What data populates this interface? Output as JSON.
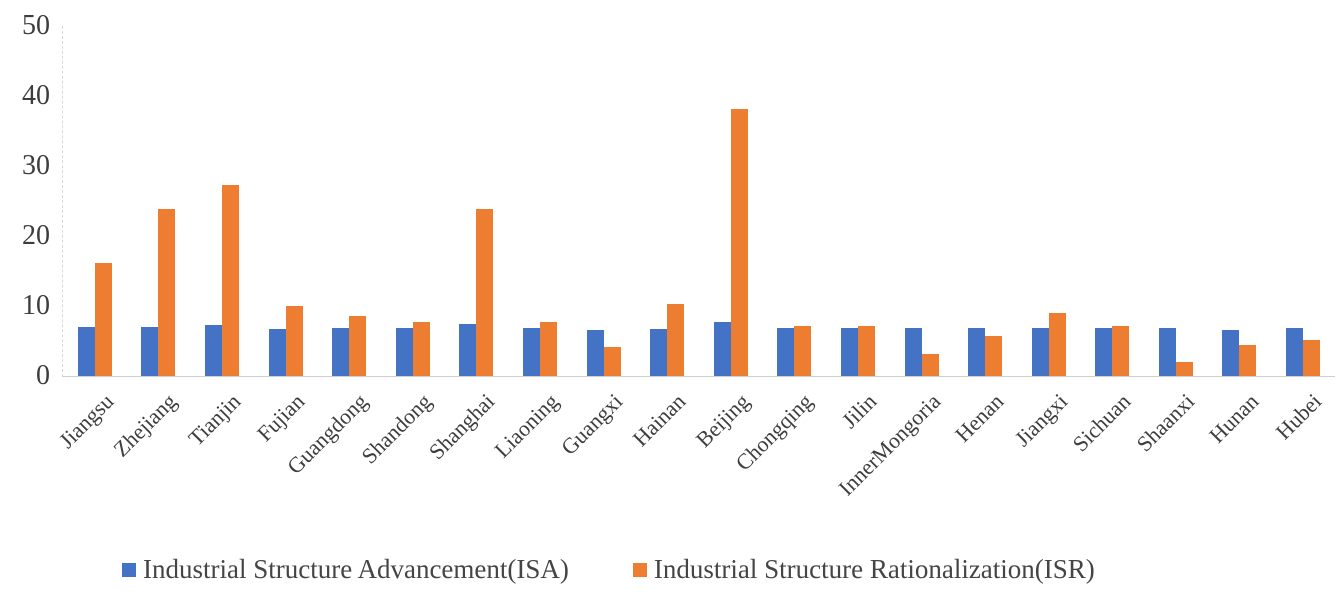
{
  "chart_data": {
    "type": "bar",
    "title": "",
    "xlabel": "",
    "ylabel": "",
    "ylim": [
      0,
      50
    ],
    "yticks": [
      0,
      10,
      20,
      30,
      40,
      50
    ],
    "grid": false,
    "legend_position": "bottom",
    "categories": [
      "Jiangsu",
      "Zhejiang",
      "Tianjin",
      "Fujian",
      "Guangdong",
      "Shandong",
      "Shanghai",
      "Liaoning",
      "Guangxi",
      "Hainan",
      "Beijing",
      "Chongqing",
      "Jilin",
      "InnerMongoria",
      "Henan",
      "Jiangxi",
      "Sichuan",
      "Shaanxi",
      "Hunan",
      "Hubei"
    ],
    "series": [
      {
        "name": "Industrial Structure Advancement(ISA)",
        "color": "#4472c4",
        "values": [
          7.0,
          7.0,
          7.3,
          6.7,
          6.9,
          6.9,
          7.4,
          6.8,
          6.6,
          6.7,
          7.7,
          6.8,
          6.8,
          6.8,
          6.8,
          6.8,
          6.8,
          6.8,
          6.6,
          6.8
        ]
      },
      {
        "name": "Industrial Structure Rationalization(ISR)",
        "color": "#ed7d31",
        "values": [
          16.1,
          23.8,
          27.3,
          10.0,
          8.6,
          7.7,
          23.8,
          7.7,
          4.1,
          10.3,
          38.2,
          7.2,
          7.2,
          3.1,
          5.7,
          9.0,
          7.2,
          2.0,
          4.4,
          5.2
        ]
      }
    ]
  },
  "legend": {
    "isa_label": "Industrial Structure Advancement(ISA)",
    "isr_label": "Industrial Structure Rationalization(ISR)"
  },
  "colors": {
    "isa": "#4472c4",
    "isr": "#ed7d31",
    "axis_line": "#d9d9d9",
    "text": "#3d3d3d"
  }
}
